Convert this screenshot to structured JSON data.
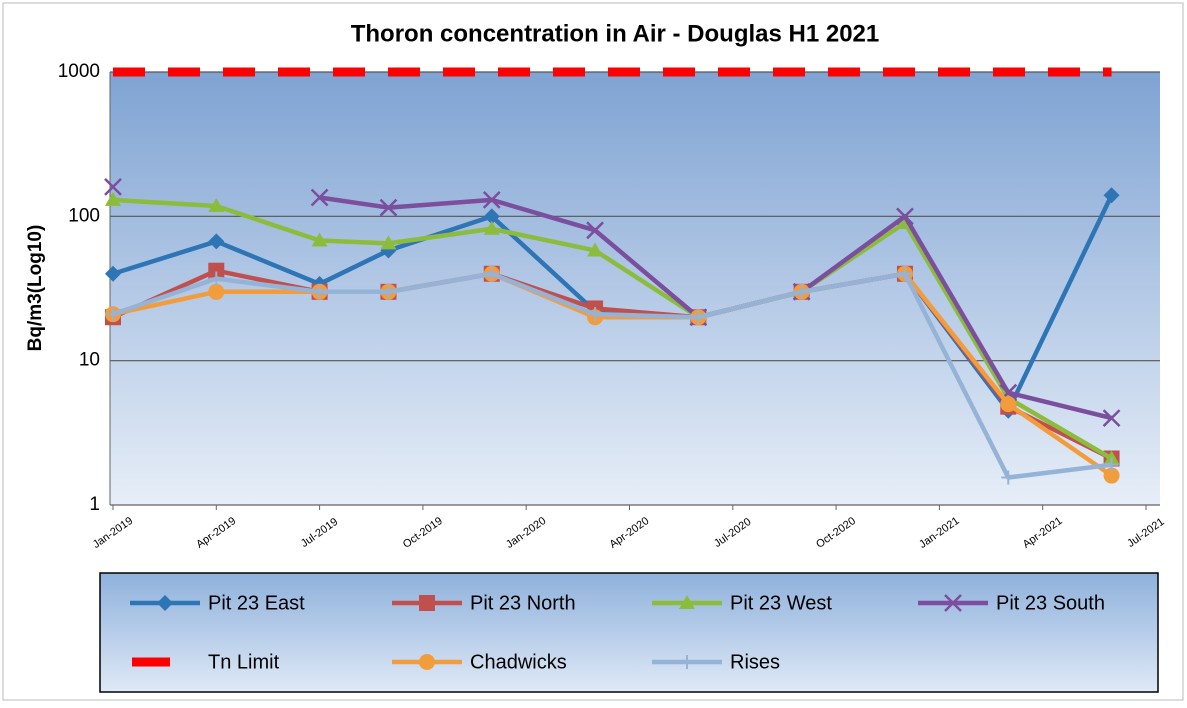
{
  "chart_data": {
    "type": "line",
    "title": "Thoron concentration in Air - Douglas H1 2021",
    "ylabel": "Bq/m3(Log10)",
    "log_scale": true,
    "grid": true,
    "legend_position": "bottom",
    "x": [
      "2019-01",
      "2019-04",
      "2019-07",
      "2019-09",
      "2019-12",
      "2020-03",
      "2020-06",
      "2020-09",
      "2020-12",
      "2021-03",
      "2021-06"
    ],
    "xlim": [
      "2019-01",
      "2021-07"
    ],
    "xticks": [
      {
        "value": "2019-01",
        "label": "Jan-2019"
      },
      {
        "value": "2019-04",
        "label": "Apr-2019"
      },
      {
        "value": "2019-07",
        "label": "Jul-2019"
      },
      {
        "value": "2019-10",
        "label": "Oct-2019"
      },
      {
        "value": "2020-01",
        "label": "Jan-2020"
      },
      {
        "value": "2020-04",
        "label": "Apr-2020"
      },
      {
        "value": "2020-07",
        "label": "Jul-2020"
      },
      {
        "value": "2020-10",
        "label": "Oct-2020"
      },
      {
        "value": "2021-01",
        "label": "Jan-2021"
      },
      {
        "value": "2021-04",
        "label": "Apr-2021"
      },
      {
        "value": "2021-07",
        "label": "Jul-2021"
      }
    ],
    "ylim": [
      1,
      1000
    ],
    "yticks": [
      1,
      10,
      100,
      1000
    ],
    "series": [
      {
        "name": "Pit 23 East",
        "color": "#2e75b6",
        "marker": "diamond",
        "values": [
          40,
          67,
          34,
          58,
          100,
          22,
          20,
          30,
          40,
          4.5,
          140
        ]
      },
      {
        "name": "Pit 23 North",
        "color": "#c0504d",
        "marker": "square",
        "values": [
          20,
          42,
          30,
          30,
          40,
          23,
          20,
          30,
          40,
          4.8,
          2.1
        ]
      },
      {
        "name": "Pit 23 West",
        "color": "#8cbc3c",
        "marker": "triangle",
        "values": [
          130,
          118,
          68,
          65,
          82,
          58,
          20,
          30,
          90,
          5.5,
          2.1
        ]
      },
      {
        "name": "Pit 23 South",
        "color": "#7b4f9d",
        "marker": "x",
        "values": [
          160,
          null,
          135,
          115,
          130,
          80,
          20,
          30,
          100,
          6,
          4
        ]
      },
      {
        "name": "Tn Limit",
        "color": "#ff0000",
        "marker": "none",
        "dash": true,
        "values": [
          1000,
          1000,
          1000,
          1000,
          1000,
          1000,
          1000,
          1000,
          1000,
          1000,
          1000
        ]
      },
      {
        "name": "Chadwicks",
        "color": "#f39c3c",
        "marker": "circle",
        "values": [
          21,
          30,
          30,
          30,
          40,
          20,
          20,
          30,
          40,
          5,
          1.6
        ]
      },
      {
        "name": "Rises",
        "color": "#95b3d7",
        "marker": "plus",
        "values": [
          21,
          37,
          30,
          30,
          40,
          21,
          20,
          30,
          40,
          1.55,
          1.9
        ]
      }
    ]
  }
}
